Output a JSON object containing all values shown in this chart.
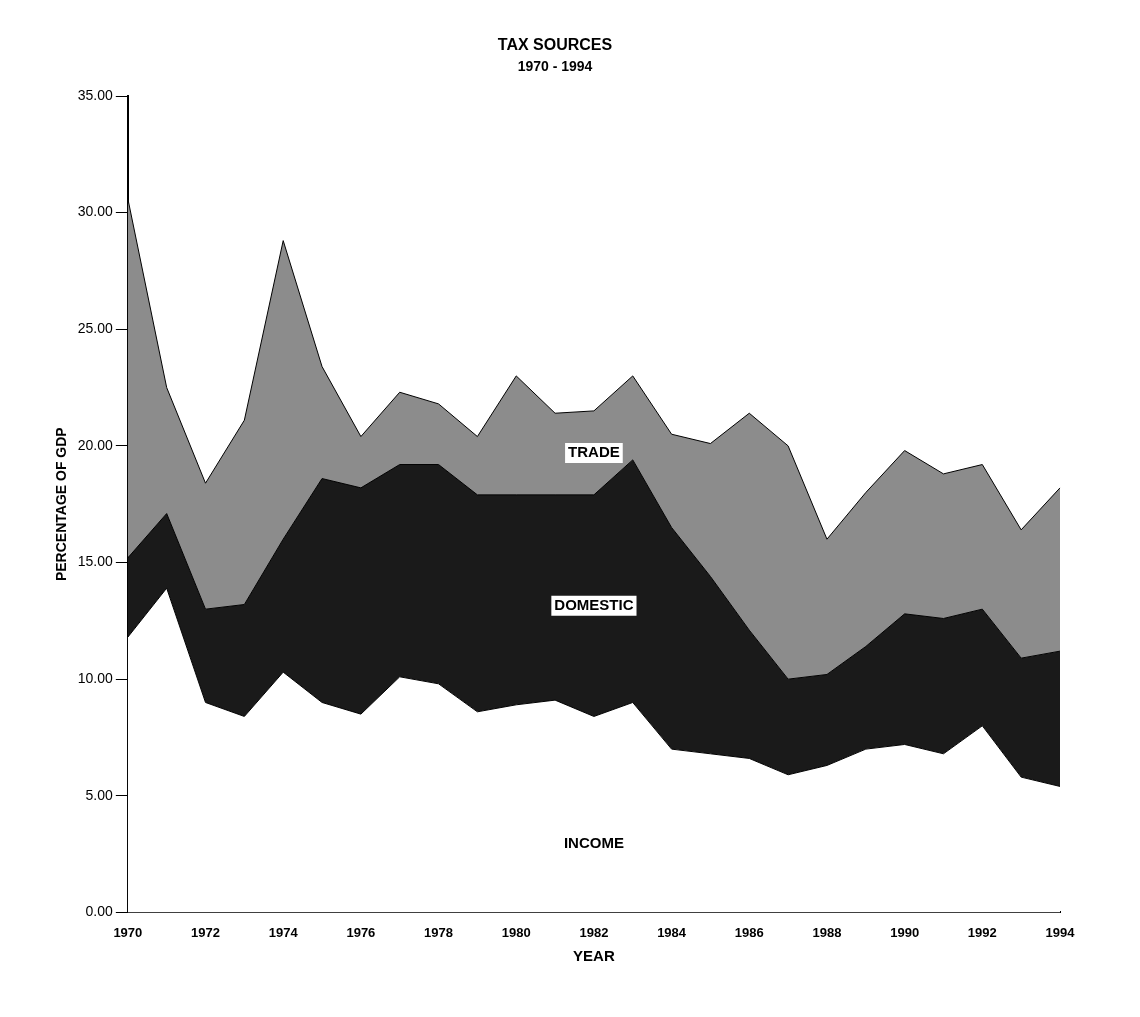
{
  "chart_data": {
    "type": "area",
    "title": "TAX SOURCES",
    "subtitle": "1970 - 1994",
    "xlabel": "YEAR",
    "ylabel": "PERCENTAGE OF GDP",
    "categories": [
      "1970",
      null,
      "1972",
      null,
      "1974",
      null,
      "1976",
      null,
      "1978",
      null,
      "1980",
      null,
      "1982",
      null,
      "1984",
      null,
      "1986",
      null,
      "1988",
      null,
      "1990",
      null,
      "1992",
      null,
      "1994"
    ],
    "stacked": true,
    "grid": false,
    "legend": false,
    "ylim": [
      0,
      35
    ],
    "yticks": [
      {
        "value": 0,
        "label": "0.00"
      },
      {
        "value": 5,
        "label": "5.00"
      },
      {
        "value": 10,
        "label": "10.00"
      },
      {
        "value": 15,
        "label": "15.00"
      },
      {
        "value": 20,
        "label": "20.00"
      },
      {
        "value": 25,
        "label": "25.00"
      },
      {
        "value": 30,
        "label": "30.00"
      },
      {
        "value": 35,
        "label": "35.00"
      }
    ],
    "series": [
      {
        "name": "INCOME",
        "color": "#ffffff",
        "values": [
          11.8,
          13.9,
          9.0,
          8.4,
          10.3,
          9.0,
          8.5,
          10.1,
          9.8,
          8.6,
          8.9,
          9.1,
          8.4,
          9.0,
          7.0,
          6.8,
          6.6,
          5.9,
          6.3,
          7.0,
          7.2,
          6.8,
          8.0,
          5.8,
          5.4
        ]
      },
      {
        "name": "DOMESTIC",
        "color": "#1a1a1a",
        "values": [
          3.4,
          3.2,
          4.0,
          4.8,
          5.7,
          9.6,
          9.7,
          9.1,
          9.4,
          9.3,
          9.0,
          8.8,
          9.5,
          10.4,
          9.5,
          7.6,
          5.5,
          4.1,
          3.9,
          4.4,
          5.6,
          5.8,
          5.0,
          5.1,
          5.8
        ]
      },
      {
        "name": "TRADE",
        "color": "#8c8c8c",
        "values": [
          15.4,
          5.4,
          5.4,
          7.9,
          12.8,
          4.8,
          2.2,
          3.1,
          2.6,
          2.5,
          5.1,
          3.5,
          3.6,
          3.6,
          4.0,
          5.7,
          9.3,
          10.0,
          5.8,
          6.6,
          7.0,
          6.2,
          6.2,
          5.5,
          7.0
        ]
      }
    ]
  }
}
